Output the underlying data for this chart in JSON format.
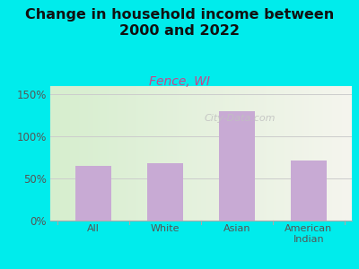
{
  "title": "Change in household income between\n2000 and 2022",
  "subtitle": "Fence, WI",
  "categories": [
    "All",
    "White",
    "Asian",
    "American\nIndian"
  ],
  "values": [
    65,
    68,
    130,
    72
  ],
  "bar_color": "#c8aad4",
  "background_outer": "#00ecec",
  "background_inner_left": "#d6eece",
  "background_inner_right": "#f5f5ee",
  "title_fontsize": 11.5,
  "subtitle_fontsize": 10,
  "subtitle_color": "#cc4488",
  "tick_color": "#555555",
  "ylim": [
    0,
    160
  ],
  "yticks": [
    0,
    50,
    100,
    150
  ],
  "ytick_labels": [
    "0%",
    "50%",
    "100%",
    "150%"
  ],
  "grid_color": "#cccccc",
  "watermark": "City-Data.com",
  "watermark_color": "#c0c0c0"
}
